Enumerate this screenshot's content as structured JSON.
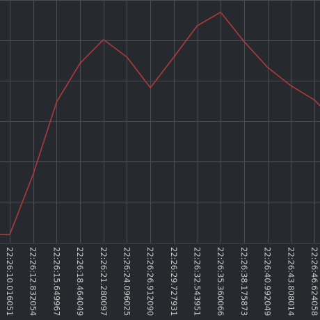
{
  "chart_data": {
    "type": "line",
    "title": "",
    "xlabel": "",
    "ylabel": "",
    "grid": true,
    "legend": "none",
    "colors": {
      "background": "#262a2e",
      "grid": "#4a4e52",
      "line": "#b0393c",
      "tick_text": "#c8c8c8"
    },
    "x": [
      "22:26:10.016051",
      "22:26:12.832054",
      "22:26:15.649967",
      "22:26:18.464049",
      "22:26:21.280097",
      "22:26:24.096025",
      "22:26:26.912090",
      "22:26:29.727931",
      "22:26:32.543951",
      "22:26:35.360066",
      "22:26:38.175873",
      "22:26:40.992049",
      "22:26:43.808014",
      "22:26:46.624058"
    ],
    "series": [
      {
        "name": "",
        "values": [
          0.0,
          1.48,
          3.25,
          4.2,
          4.78,
          4.35,
          3.6,
          4.35,
          5.12,
          5.45,
          4.73,
          4.1,
          3.65,
          3.3
        ]
      }
    ],
    "ylim": [
      -0.2,
      5.75
    ]
  }
}
